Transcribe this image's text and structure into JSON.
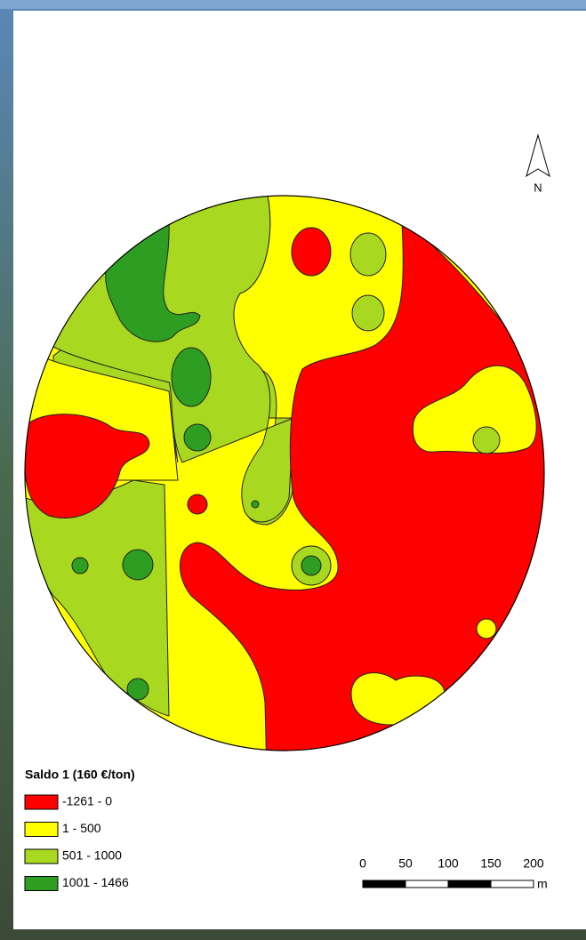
{
  "map": {
    "north_label": "N",
    "legend": {
      "title": "Saldo 1 (160 €/ton)",
      "classes": [
        {
          "label": "-1261 - 0",
          "color": "#ff0000"
        },
        {
          "label": "1 - 500",
          "color": "#ffff00"
        },
        {
          "label": "501 - 1000",
          "color": "#a8d820"
        },
        {
          "label": "1001 - 1466",
          "color": "#2e9e22"
        }
      ]
    },
    "scale_bar": {
      "ticks": [
        0,
        50,
        100,
        150,
        200
      ],
      "unit": "m"
    }
  }
}
